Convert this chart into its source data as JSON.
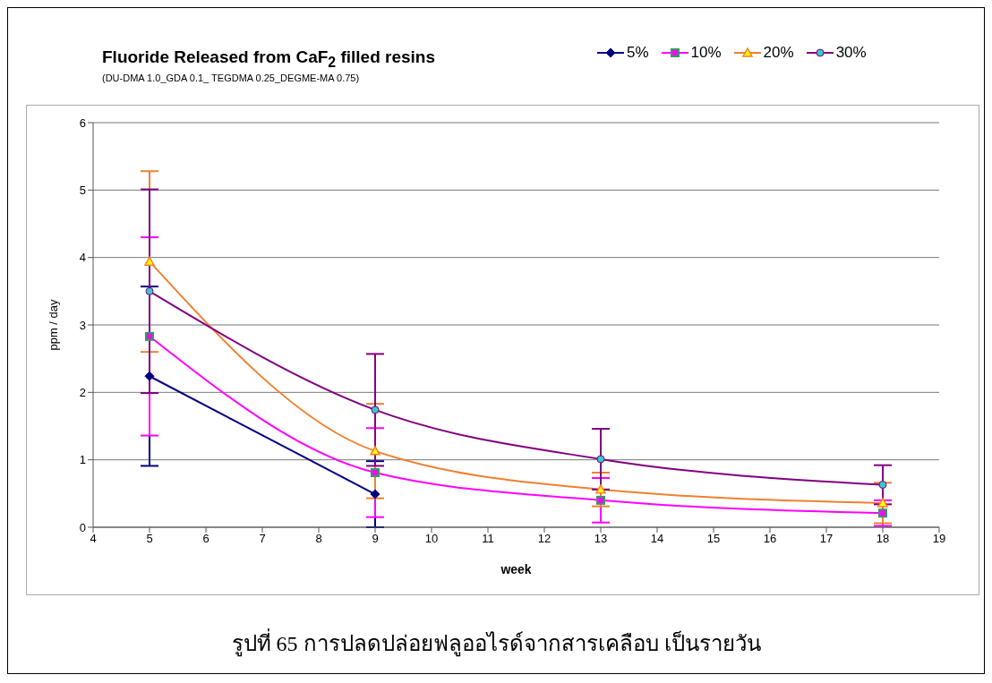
{
  "chart_data": {
    "type": "line",
    "title": "Fluoride Released from CaF$_{2}$ filled resins",
    "subtitle": "(DU-DMA 1.0_GDA 0.1_ TEGDMA 0.25_DEGME-MA 0.75)",
    "xlabel": "week",
    "ylabel": "ppm / day",
    "x": [
      5,
      9,
      13,
      18
    ],
    "series": [
      {
        "name": "5%",
        "color": "#000080",
        "marker": "diamond",
        "values": [
          2.24,
          0.49,
          null,
          null
        ],
        "errors": [
          1.33,
          0.49,
          null,
          null
        ]
      },
      {
        "name": "10%",
        "color": "#ff00ff",
        "marker": "square",
        "values": [
          2.83,
          0.81,
          0.4,
          0.21
        ],
        "errors": [
          1.47,
          0.66,
          0.33,
          0.19
        ]
      },
      {
        "name": "20%",
        "color": "#f08030",
        "marker": "triangle",
        "values": [
          3.94,
          1.13,
          0.56,
          0.36
        ],
        "errors": [
          1.34,
          0.7,
          0.25,
          0.3
        ]
      },
      {
        "name": "30%",
        "color": "#800080",
        "marker": "circle",
        "values": [
          3.5,
          1.74,
          1.01,
          0.63
        ],
        "errors": [
          1.51,
          0.83,
          0.45,
          0.29
        ]
      }
    ],
    "xlim": [
      4,
      19
    ],
    "xticks": [
      4,
      5,
      6,
      7,
      8,
      9,
      10,
      11,
      12,
      13,
      14,
      15,
      16,
      17,
      18,
      19
    ],
    "ylim": [
      0,
      6
    ],
    "yticks": [
      0,
      1,
      2,
      3,
      4,
      5,
      6
    ],
    "grid": "y",
    "legend": "top right",
    "annotations": [
      "รูปที่ 65 การปลดปล่อยฟลูออไรด์จากสารเคลือบ เป็นรายวัน"
    ]
  }
}
